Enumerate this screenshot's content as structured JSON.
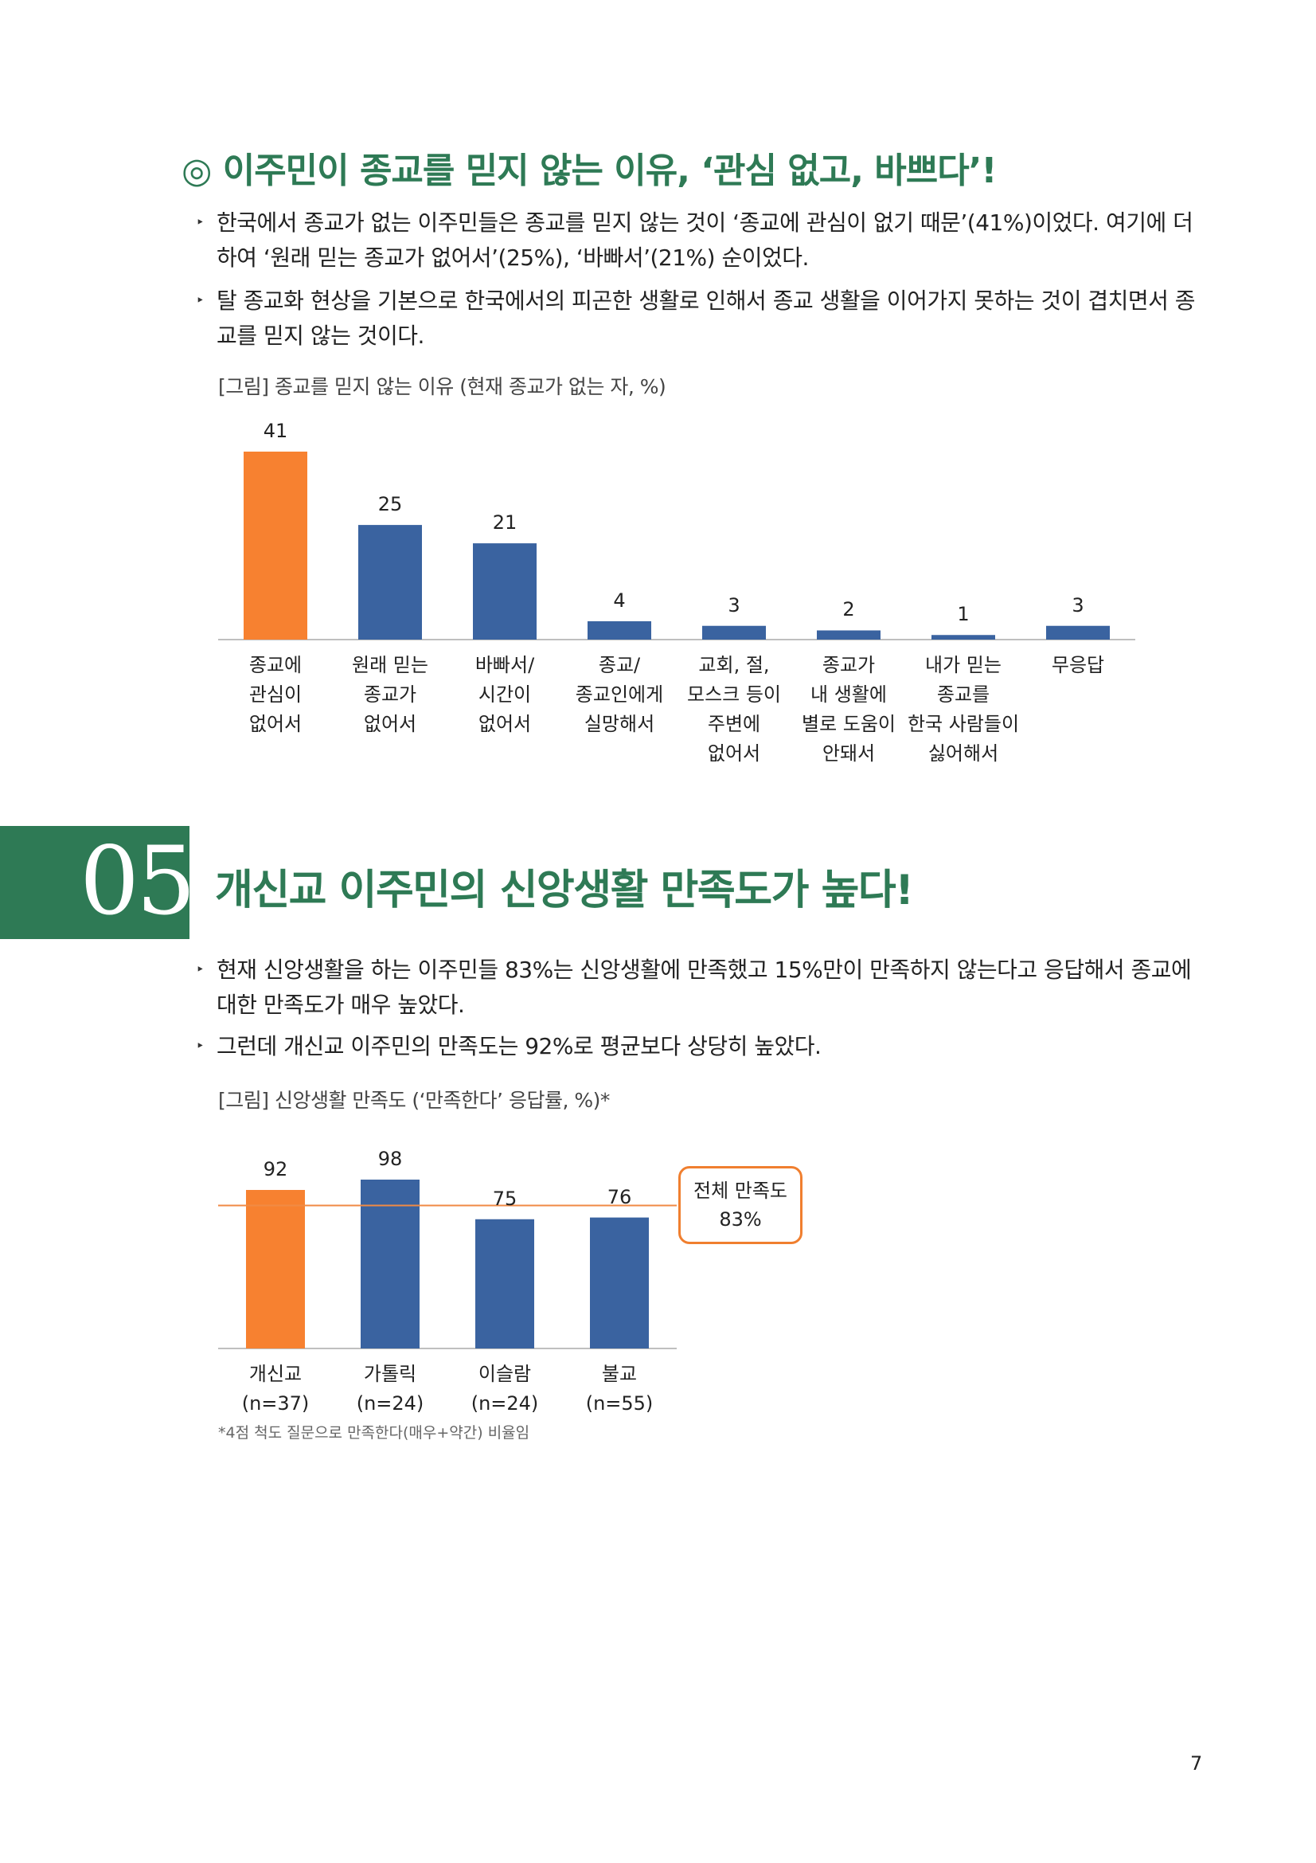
{
  "section1": {
    "title": "◎ 이주민이 종교를 믿지 않는 이유, ‘관심 없고, 바쁘다’!",
    "bullets": [
      "한국에서 종교가 없는 이주민들은 종교를 믿지 않는 것이 ‘종교에 관심이 없기 때문’(41%)이었다. 여기에 더하여 ‘원래 믿는 종교가 없어서’(25%), ‘바빠서’(21%) 순이었다.",
      "탈 종교화 현상을 기본으로 한국에서의 피곤한 생활로 인해서 종교 생활을 이어가지 못하는 것이 겹치면서 종교를 믿지 않는 것이다."
    ],
    "figure_caption": "[그림] 종교를 믿지 않는 이유 (현재 종교가 없는 자, %)"
  },
  "section5": {
    "number": "05",
    "title": "개신교 이주민의 신앙생활 만족도가 높다!",
    "bullets": [
      "현재 신앙생활을 하는 이주민들 83%는 신앙생활에 만족했고 15%만이 만족하지 않는다고 응답해서 종교에 대한 만족도가 매우 높았다.",
      "그런데 개신교 이주민의 만족도는 92%로 평균보다 상당히 높았다."
    ],
    "figure_caption": "[그림] 신앙생활 만족도 (‘만족한다’ 응답률, %)*",
    "callout_label": "전체 만족도",
    "callout_value": "83%",
    "footnote": "*4점 척도 질문으로 만족한다(매우+약간) 비율임"
  },
  "page_number": "7",
  "colors": {
    "accent_green": "#2e7a55",
    "bar_orange": "#f78130",
    "bar_blue": "#3a63a0",
    "ref_line": "#f08a44"
  },
  "chart_data": [
    {
      "type": "bar",
      "categories": [
        "종교에\n관심이\n없어서",
        "원래 믿는\n종교가\n없어서",
        "바빠서/\n시간이\n없어서",
        "종교/\n종교인에게\n실망해서",
        "교회, 절,\n모스크 등이\n주변에\n없어서",
        "종교가\n내 생활에\n별로 도움이\n안돼서",
        "내가 믿는\n종교를\n한국 사람들이\n싫어해서",
        "무응답"
      ],
      "values": [
        41,
        25,
        21,
        4,
        3,
        2,
        1,
        3
      ],
      "highlight_index": 0,
      "data_labels": true,
      "ylim": [
        0,
        41
      ]
    },
    {
      "type": "bar",
      "categories": [
        "개신교\n(n=37)",
        "가톨릭\n(n=24)",
        "이슬람\n(n=24)",
        "불교\n(n=55)"
      ],
      "values": [
        92,
        98,
        75,
        76
      ],
      "highlight_index": 0,
      "reference_line": 83,
      "data_labels": true,
      "ylim": [
        0,
        98
      ]
    }
  ]
}
